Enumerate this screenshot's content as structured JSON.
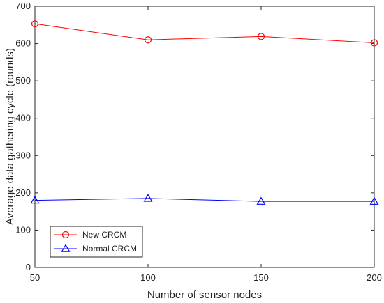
{
  "chart_data": {
    "type": "line",
    "title": "",
    "xlabel": "Number of sensor nodes",
    "ylabel": "Average data gathering cycle (rounds)",
    "x": [
      50,
      100,
      150,
      200
    ],
    "xlim": [
      50,
      200
    ],
    "ylim": [
      0,
      700
    ],
    "xticks": [
      50,
      100,
      150,
      200
    ],
    "yticks": [
      0,
      100,
      200,
      300,
      400,
      500,
      600,
      700
    ],
    "grid": false,
    "legend_position": "bottom-left",
    "series": [
      {
        "name": "New CRCM",
        "values": [
          653,
          610,
          619,
          602
        ],
        "color": "#ff0000",
        "marker": "circle"
      },
      {
        "name": "Normal CRCM",
        "values": [
          180,
          185,
          177,
          177
        ],
        "color": "#0000ff",
        "marker": "triangle"
      }
    ]
  }
}
